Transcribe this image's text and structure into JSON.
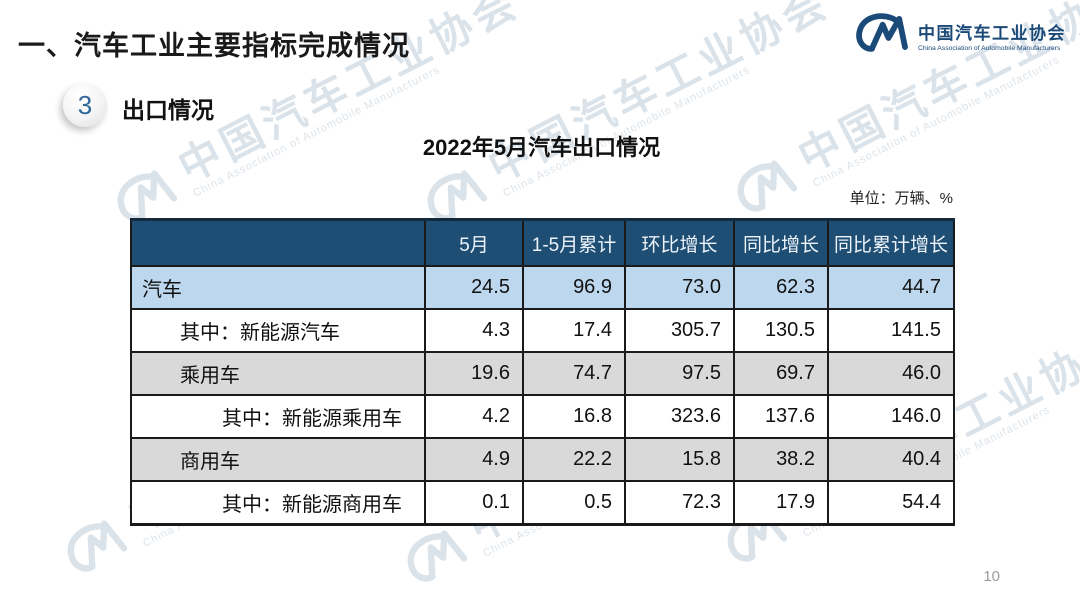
{
  "slide": {
    "title": "一、汽车工业主要指标完成情况",
    "page_number": "10"
  },
  "logo": {
    "mark": "CM",
    "org_cn": "中国汽车工业协会",
    "org_en": "China Association of Automobile Manufacturers"
  },
  "section": {
    "badge": "3",
    "label": "出口情况"
  },
  "table_title": "2022年5月汽车出口情况",
  "unit_label": "单位：万辆、%",
  "chart_data": {
    "type": "table",
    "title": "2022年5月汽车出口情况",
    "unit": "万辆、%",
    "columns": [
      "",
      "5月",
      "1-5月累计",
      "环比增长",
      "同比增长",
      "同比累计增长"
    ],
    "rows": [
      {
        "label": "汽车",
        "indent": 0,
        "highlight": "blue",
        "values": [
          "24.5",
          "96.9",
          "73.0",
          "62.3",
          "44.7"
        ]
      },
      {
        "label": "其中：新能源汽车",
        "indent": 1,
        "highlight": "white",
        "values": [
          "4.3",
          "17.4",
          "305.7",
          "130.5",
          "141.5"
        ]
      },
      {
        "label": "乘用车",
        "indent": 1,
        "highlight": "gray",
        "values": [
          "19.6",
          "74.7",
          "97.5",
          "69.7",
          "46.0"
        ]
      },
      {
        "label": "其中：新能源乘用车",
        "indent": 2,
        "highlight": "white",
        "values": [
          "4.2",
          "16.8",
          "323.6",
          "137.6",
          "146.0"
        ]
      },
      {
        "label": "商用车",
        "indent": 1,
        "highlight": "gray",
        "values": [
          "4.9",
          "22.2",
          "15.8",
          "38.2",
          "40.4"
        ]
      },
      {
        "label": "其中：新能源商用车",
        "indent": 2,
        "highlight": "white",
        "values": [
          "0.1",
          "0.5",
          "72.3",
          "17.9",
          "54.4"
        ]
      }
    ]
  },
  "colors": {
    "header_bg": "#1F4E74",
    "row_blue": "#BDD7EE",
    "row_gray": "#D9D9D9",
    "brand_blue": "#1B4A78",
    "badge_number": "#31679B"
  }
}
